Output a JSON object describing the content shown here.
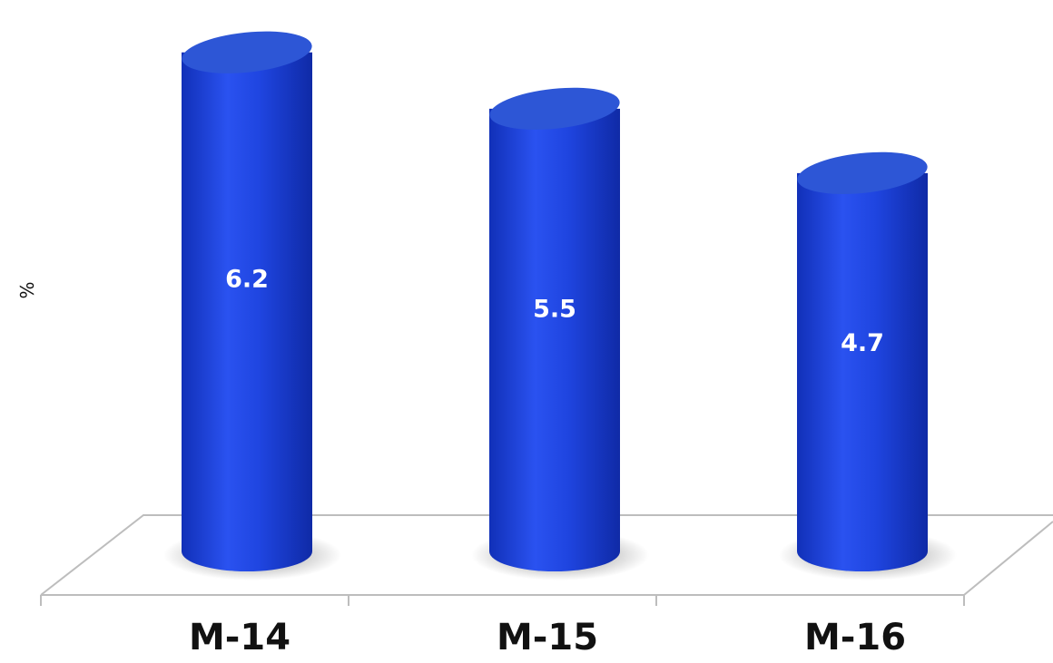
{
  "chart_data": {
    "type": "bar",
    "style": "3d-cylinder",
    "categories": [
      "M-14",
      "M-15",
      "M-16"
    ],
    "values": [
      6.2,
      5.5,
      4.7
    ],
    "value_labels": [
      "6.2",
      "5.5",
      "4.7"
    ],
    "title": "",
    "xlabel": "",
    "ylabel": "%",
    "ylim": [
      0,
      6.4
    ],
    "grid": false,
    "legend": "none",
    "colors": {
      "bar": "#1f45e0",
      "bar_dark": "#1130b8",
      "bar_top": "#2d56d6",
      "floor_line": "#bdbdbd"
    }
  }
}
